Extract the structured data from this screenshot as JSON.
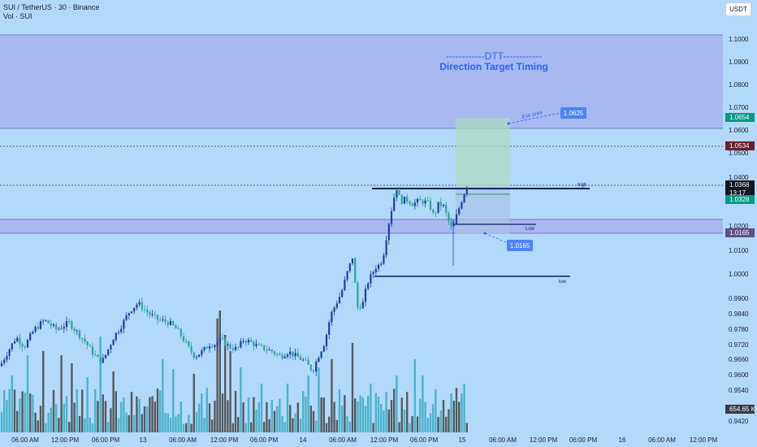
{
  "header": {
    "line1": "SUI / TetherUS · 30 · Binance",
    "line2": "Vol · SUI"
  },
  "currency_button": "USDT",
  "chart_data": {
    "type": "candlestick",
    "title": "SUI / TetherUS · 30 · Binance",
    "ylim": [
      0.94,
      1.11
    ],
    "y_ticks": [
      "1.1000",
      "1.0900",
      "1.0800",
      "1.0700",
      "1.0600",
      "1.0500",
      "1.0400",
      "1.0200",
      "1.0100",
      "1.0000",
      "0.9900",
      "0.9840",
      "0.9780",
      "0.9720",
      "0.9660",
      "0.9600",
      "0.9540",
      "0.9420"
    ],
    "x_ticks": [
      "06:00 AM",
      "12:00 PM",
      "06:00 PM",
      "13",
      "06:00 AM",
      "12:00 PM",
      "06:00 PM",
      "14",
      "06:00 AM",
      "12:00 PM",
      "06:00 PM",
      "15",
      "06:00 AM",
      "12:00 PM",
      "06:00 PM",
      "16",
      "06:00 AM",
      "12:00 PM"
    ],
    "annotations": {
      "title_line": "------------DTT------------",
      "subtitle": "Direction Target Timing",
      "exit_area": "Exit area",
      "exit_price": "1.0625",
      "stop_price": "1.0165",
      "high_label": "high",
      "low_label": "Low",
      "low2_label": "low"
    },
    "price_tags": [
      {
        "label": "1.0654",
        "color": "#089981"
      },
      {
        "label": "1.0534",
        "color": "#6b1f2c"
      },
      {
        "label": "1.0368",
        "time": "13:17",
        "color": "#131722"
      },
      {
        "label": "1.0328",
        "color": "#089981"
      },
      {
        "label": "1.0165",
        "color": "#5e4f8c"
      },
      {
        "label": "654.65 K",
        "color": "#363a45"
      }
    ],
    "volume_last": "654.65 K",
    "colors": {
      "up": "#1e3fa0",
      "down": "#26a69a",
      "vol_up": "#4b4b4b",
      "vol_down": "#3eaec4",
      "zone": "#9d9fe5"
    }
  }
}
